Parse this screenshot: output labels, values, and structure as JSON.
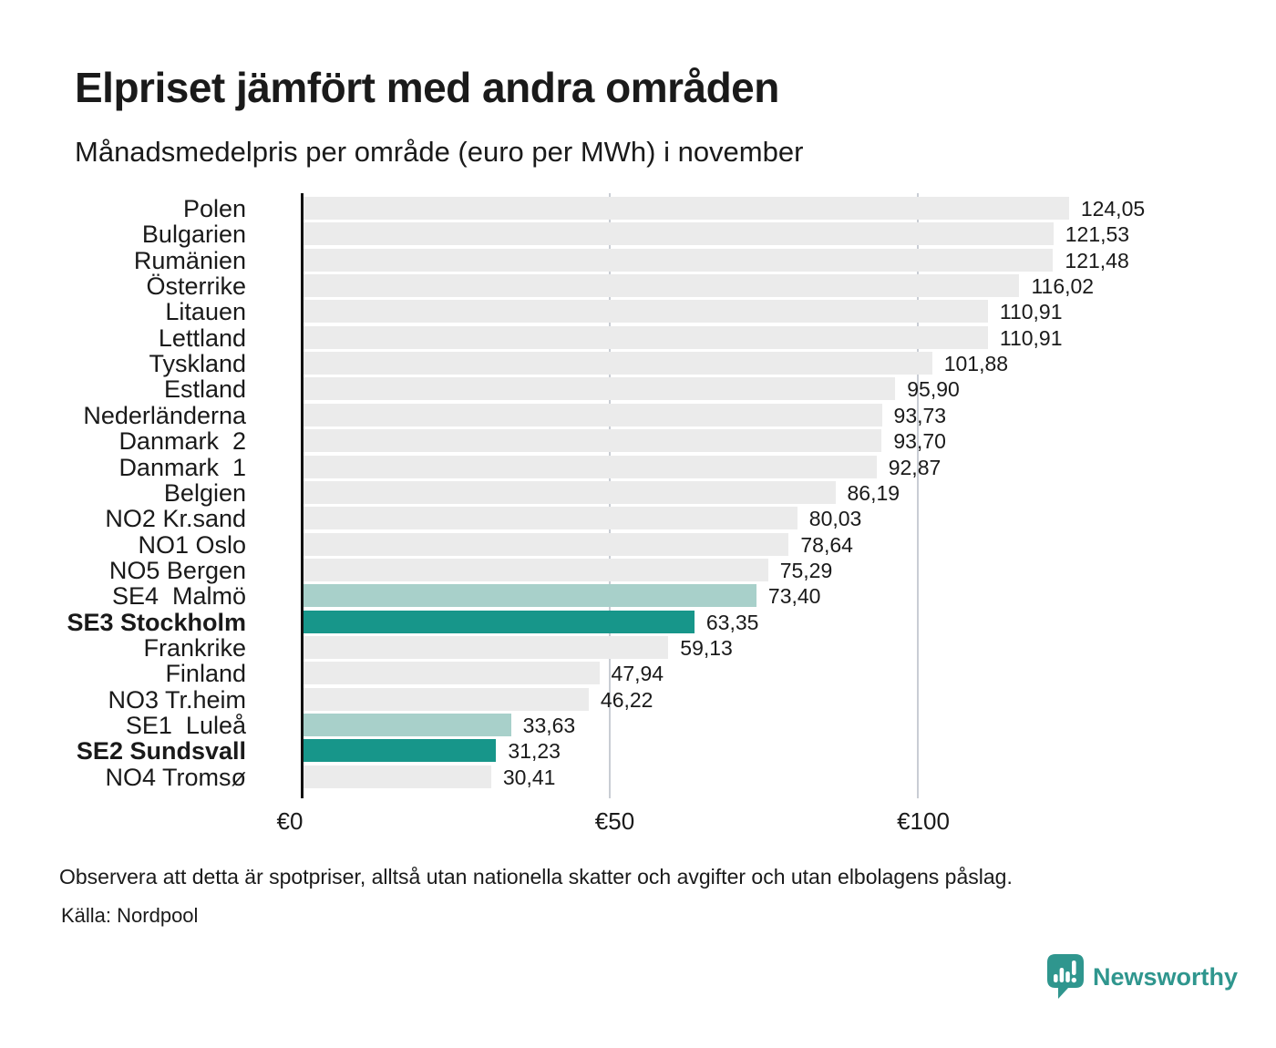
{
  "header": {
    "title": "Elpriset jämfört med andra områden",
    "subtitle": "Månadsmedelpris per område (euro per MWh) i november"
  },
  "chart_data": {
    "type": "bar",
    "orientation": "horizontal",
    "unit": "euro per MWh",
    "xlim": [
      0,
      124.05
    ],
    "grid": "vertical",
    "x_ticks": [
      {
        "label": "€0",
        "value": 0
      },
      {
        "label": "€50",
        "value": 50
      },
      {
        "label": "€100",
        "value": 100
      }
    ],
    "rows": [
      {
        "label": "Polen",
        "value": 124.05,
        "display": "124,05",
        "variant": "default",
        "bold": false
      },
      {
        "label": "Bulgarien",
        "value": 121.53,
        "display": "121,53",
        "variant": "default",
        "bold": false
      },
      {
        "label": "Rumänien",
        "value": 121.48,
        "display": "121,48",
        "variant": "default",
        "bold": false
      },
      {
        "label": "Österrike",
        "value": 116.02,
        "display": "116,02",
        "variant": "default",
        "bold": false
      },
      {
        "label": "Litauen",
        "value": 110.91,
        "display": "110,91",
        "variant": "default",
        "bold": false
      },
      {
        "label": "Lettland",
        "value": 110.91,
        "display": "110,91",
        "variant": "default",
        "bold": false
      },
      {
        "label": "Tyskland",
        "value": 101.88,
        "display": "101,88",
        "variant": "default",
        "bold": false
      },
      {
        "label": "Estland",
        "value": 95.9,
        "display": "95,90",
        "variant": "default",
        "bold": false
      },
      {
        "label": "Nederländerna",
        "value": 93.73,
        "display": "93,73",
        "variant": "default",
        "bold": false
      },
      {
        "label": "Danmark  2",
        "value": 93.7,
        "display": "93,70",
        "variant": "default",
        "bold": false
      },
      {
        "label": "Danmark  1",
        "value": 92.87,
        "display": "92,87",
        "variant": "default",
        "bold": false
      },
      {
        "label": "Belgien",
        "value": 86.19,
        "display": "86,19",
        "variant": "default",
        "bold": false
      },
      {
        "label": "NO2 Kr.sand",
        "value": 80.03,
        "display": "80,03",
        "variant": "default",
        "bold": false
      },
      {
        "label": "NO1 Oslo",
        "value": 78.64,
        "display": "78,64",
        "variant": "default",
        "bold": false
      },
      {
        "label": "NO5 Bergen",
        "value": 75.29,
        "display": "75,29",
        "variant": "default",
        "bold": false
      },
      {
        "label": "SE4  Malmö",
        "value": 73.4,
        "display": "73,40",
        "variant": "light",
        "bold": false
      },
      {
        "label": "SE3 Stockholm",
        "value": 63.35,
        "display": "63,35",
        "variant": "dark",
        "bold": true
      },
      {
        "label": "Frankrike",
        "value": 59.13,
        "display": "59,13",
        "variant": "default",
        "bold": false
      },
      {
        "label": "Finland",
        "value": 47.94,
        "display": "47,94",
        "variant": "default",
        "bold": false
      },
      {
        "label": "NO3 Tr.heim",
        "value": 46.22,
        "display": "46,22",
        "variant": "default",
        "bold": false
      },
      {
        "label": "SE1  Luleå",
        "value": 33.63,
        "display": "33,63",
        "variant": "light",
        "bold": false
      },
      {
        "label": "SE2 Sundsvall",
        "value": 31.23,
        "display": "31,23",
        "variant": "dark",
        "bold": true
      },
      {
        "label": "NO4 Tromsø",
        "value": 30.41,
        "display": "30,41",
        "variant": "default",
        "bold": false
      }
    ]
  },
  "colors": {
    "bar_default": "#ebebeb",
    "bar_dark_teal": "#17968a",
    "bar_light_teal": "#a8d0ca",
    "brand_teal": "#2f968e",
    "gridline": "#c9cdd4",
    "axis": "#111111",
    "text": "#1a1a1a"
  },
  "footer": {
    "note": "Observera att detta är spotpriser, alltså utan nationella skatter och avgifter och utan elbolagens påslag.",
    "source": "Källa: Nordpool",
    "brand": "Newsworthy"
  }
}
